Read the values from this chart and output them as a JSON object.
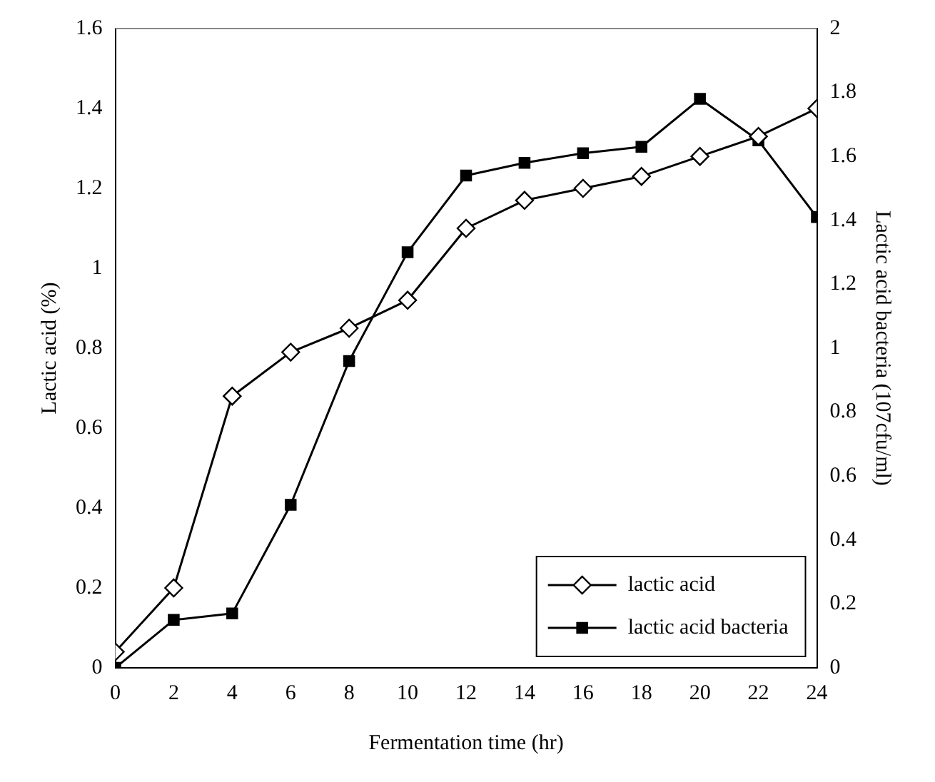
{
  "chart_data": {
    "type": "line",
    "xlabel": "Fermentation time (hr)",
    "ylabel": "Lactic acid (%)",
    "y2label": "Lactic acid bacteria (107cfu/ml)",
    "x": [
      0,
      2,
      4,
      6,
      8,
      10,
      12,
      14,
      16,
      18,
      20,
      22,
      24
    ],
    "series": [
      {
        "name": "lactic acid",
        "color": "#000000",
        "marker": "diamond",
        "values": [
          0.04,
          0.2,
          0.68,
          0.79,
          0.85,
          0.92,
          1.1,
          1.17,
          1.2,
          1.23,
          1.28,
          1.33,
          1.4
        ]
      },
      {
        "name": "lactic acid bacteria",
        "color": "#000000",
        "marker": "square",
        "axis": "y2",
        "values": [
          0,
          0.15,
          0.17,
          0.51,
          0.96,
          1.3,
          1.54,
          1.58,
          1.61,
          1.63,
          1.78,
          1.65,
          1.41
        ]
      }
    ],
    "xlim": [
      0,
      24
    ],
    "xticks": [
      0,
      2,
      4,
      6,
      8,
      10,
      12,
      14,
      16,
      18,
      20,
      22,
      24
    ],
    "ylim": [
      0,
      1.6
    ],
    "yticks": [
      0,
      0.2,
      0.4,
      0.6,
      0.8,
      1,
      1.2,
      1.4,
      1.6
    ],
    "y2lim": [
      0,
      2
    ],
    "y2ticks": [
      0,
      0.2,
      0.4,
      0.6,
      0.8,
      1,
      1.2,
      1.4,
      1.6,
      1.8,
      2
    ],
    "grid": false,
    "legend": "bottom right",
    "line_style": "solid"
  }
}
